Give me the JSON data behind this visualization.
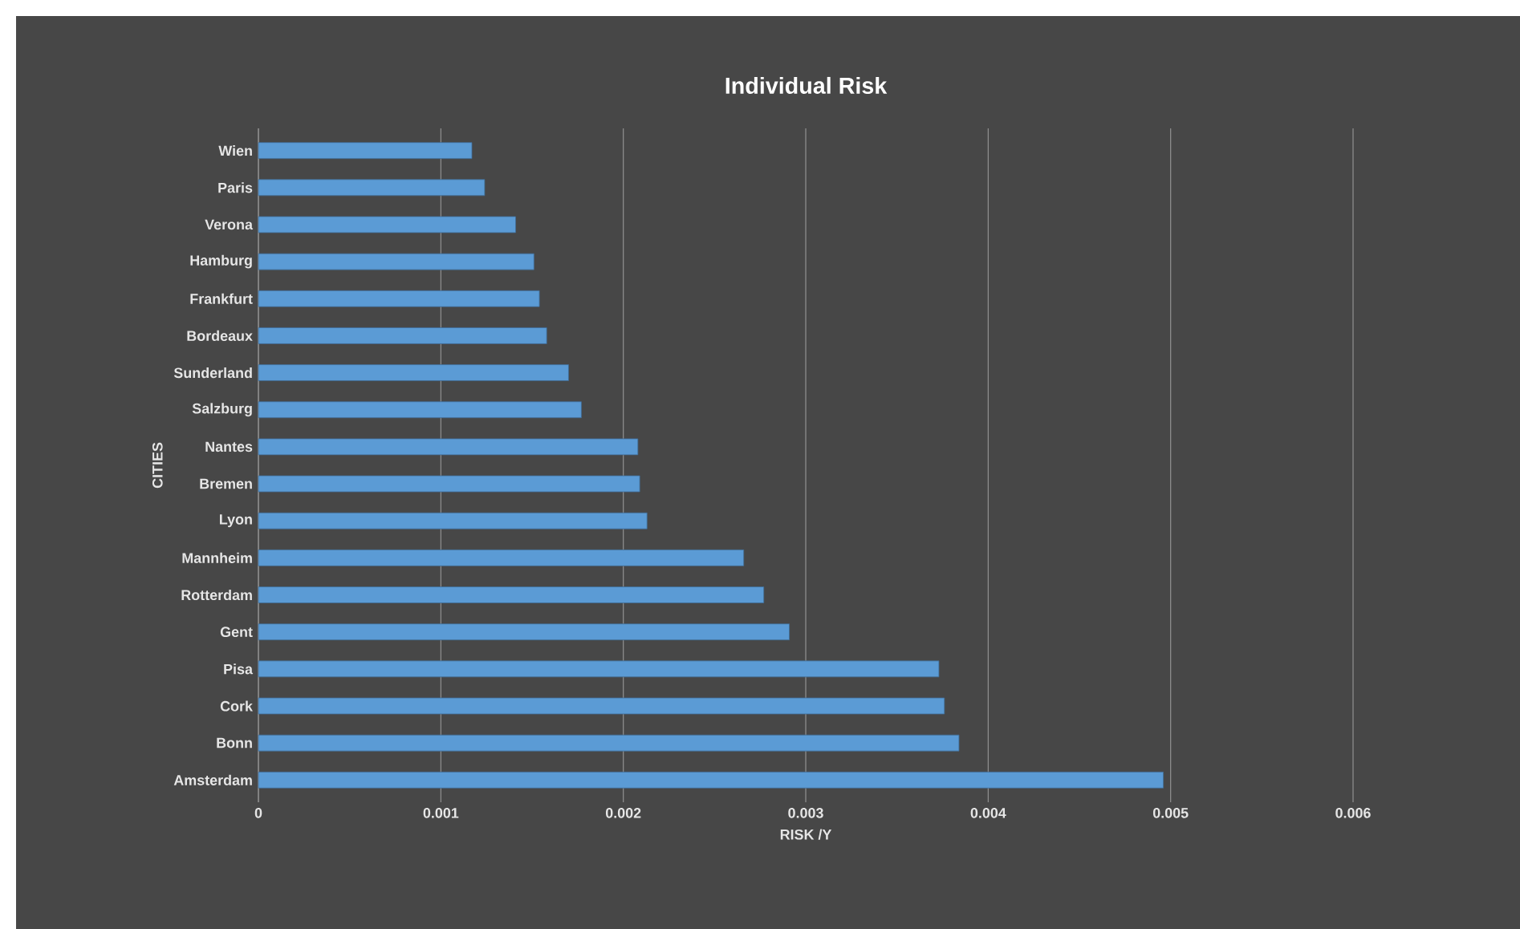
{
  "chart_data": {
    "type": "bar",
    "orientation": "horizontal",
    "title": "Individual Risk",
    "xlabel": "RISK /Y",
    "ylabel": "CITIES",
    "categories": [
      "Wien",
      "Paris",
      "Verona",
      "Hamburg",
      "Frankfurt",
      "Bordeaux",
      "Sunderland",
      "Salzburg",
      "Nantes",
      "Bremen",
      "Lyon",
      "Mannheim",
      "Rotterdam",
      "Gent",
      "Pisa",
      "Cork",
      "Bonn",
      "Amsterdam"
    ],
    "values": [
      0.00117,
      0.00124,
      0.00141,
      0.00151,
      0.00154,
      0.00158,
      0.0017,
      0.00177,
      0.00208,
      0.00209,
      0.00213,
      0.00266,
      0.00277,
      0.00291,
      0.00373,
      0.00376,
      0.00384,
      0.00496
    ],
    "color": "#5b9bd5",
    "xlim": [
      0,
      0.006
    ],
    "xticks": [
      0,
      0.001,
      0.002,
      0.003,
      0.004,
      0.005,
      0.006
    ],
    "grid": "x"
  }
}
